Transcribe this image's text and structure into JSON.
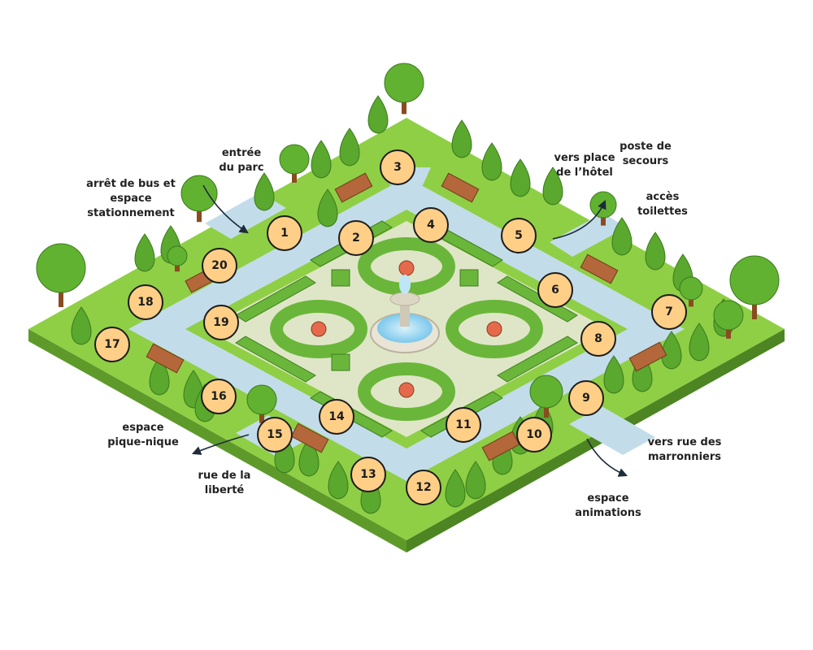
{
  "colors": {
    "grass": "#8fcf45",
    "grass_side": "#5e9a2a",
    "path": "#c2dde9",
    "plaza": "#dfe6c7",
    "hedge": "#6ab63a",
    "marker_fill": "#ffcf88",
    "marker_border": "#1c1c1c",
    "water": "#8fd2f0",
    "text": "#222222"
  },
  "labels": {
    "park_entrance": "entrée\ndu parc",
    "bus_stop": "arrêt de bus et\nespace\nstationnement",
    "hotel": "vers place\nde l’hôtel",
    "first_aid": "poste de\nsecours",
    "toilets": "accès\ntoilettes",
    "picnic": "espace\npique-nique",
    "liberte_street": "rue de la\nliberté",
    "marronniers_street": "vers rue des\nmarronniers",
    "animations": "espace\nanimations"
  },
  "markers": [
    {
      "id": "1",
      "label": "1"
    },
    {
      "id": "2",
      "label": "2"
    },
    {
      "id": "3",
      "label": "3"
    },
    {
      "id": "4",
      "label": "4"
    },
    {
      "id": "5",
      "label": "5"
    },
    {
      "id": "6",
      "label": "6"
    },
    {
      "id": "7",
      "label": "7"
    },
    {
      "id": "8",
      "label": "8"
    },
    {
      "id": "9",
      "label": "9"
    },
    {
      "id": "10",
      "label": "10"
    },
    {
      "id": "11",
      "label": "11"
    },
    {
      "id": "12",
      "label": "12"
    },
    {
      "id": "13",
      "label": "13"
    },
    {
      "id": "14",
      "label": "14"
    },
    {
      "id": "15",
      "label": "15"
    },
    {
      "id": "16",
      "label": "16"
    },
    {
      "id": "17",
      "label": "17"
    },
    {
      "id": "18",
      "label": "18"
    },
    {
      "id": "19",
      "label": "19"
    },
    {
      "id": "20",
      "label": "20"
    }
  ]
}
